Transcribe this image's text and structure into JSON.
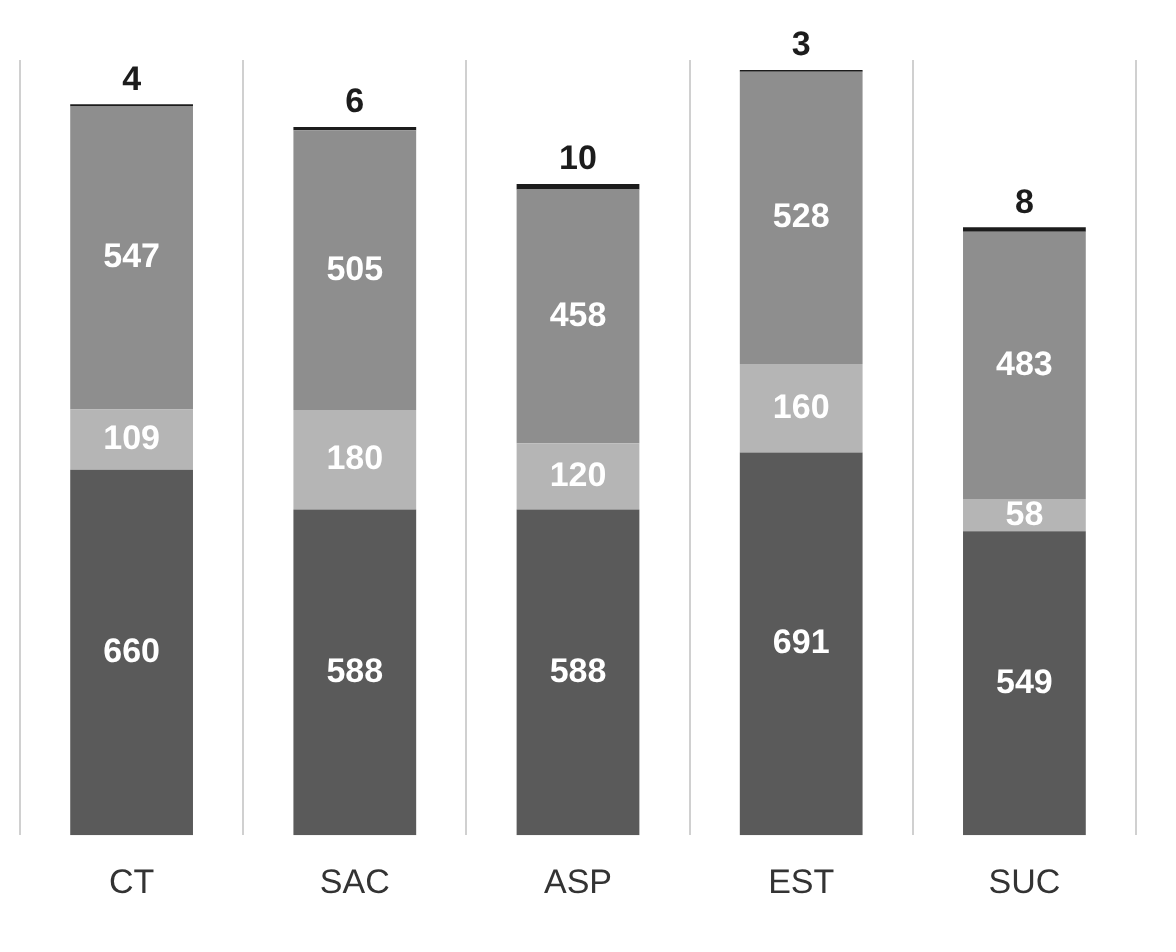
{
  "chart_data": {
    "type": "bar",
    "stacked": true,
    "categories": [
      "CT",
      "SAC",
      "ASP",
      "EST",
      "SUC"
    ],
    "series": [
      {
        "color": "#5a5a5a",
        "values": [
          660,
          588,
          588,
          691,
          549
        ]
      },
      {
        "color": "#b5b5b5",
        "values": [
          109,
          180,
          120,
          160,
          58
        ]
      },
      {
        "color": "#8e8e8e",
        "values": [
          547,
          505,
          458,
          528,
          483
        ]
      },
      {
        "color": "#1c1c1c",
        "values": [
          4,
          6,
          10,
          3,
          8
        ]
      }
    ],
    "data_labels": true,
    "grid": "x",
    "legend": false
  }
}
